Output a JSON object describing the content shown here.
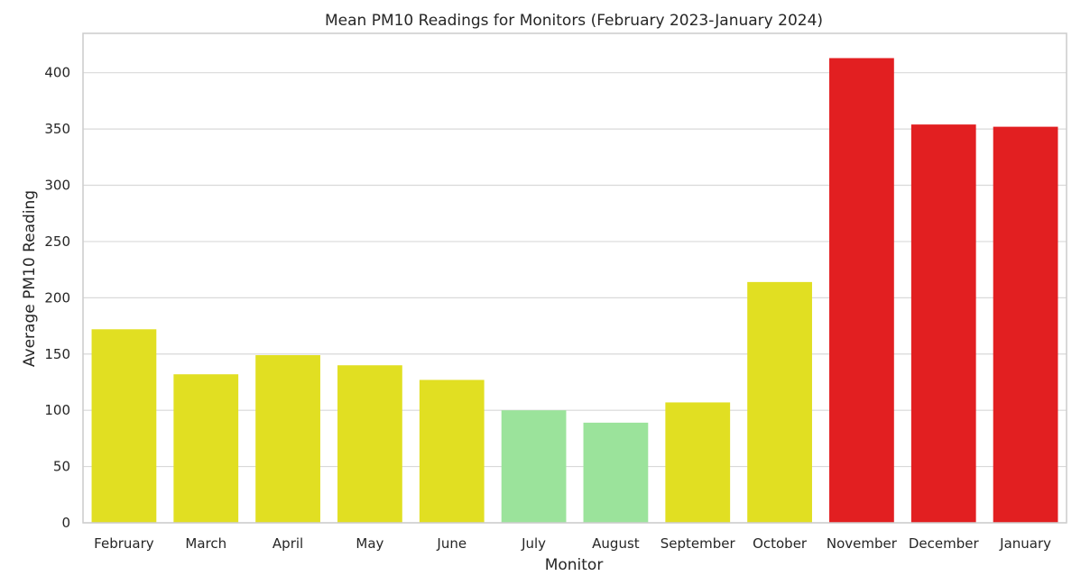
{
  "chart_data": {
    "type": "bar",
    "title": "Mean PM10 Readings for Monitors (February 2023-January 2024)",
    "xlabel": "Monitor",
    "ylabel": "Average PM10 Reading",
    "categories": [
      "February",
      "March",
      "April",
      "May",
      "June",
      "July",
      "August",
      "September",
      "October",
      "November",
      "December",
      "January"
    ],
    "values": [
      172,
      132,
      149,
      140,
      127,
      100,
      89,
      107,
      214,
      413,
      354,
      352
    ],
    "bar_colors": [
      "#e1df22",
      "#e1df22",
      "#e1df22",
      "#e1df22",
      "#e1df22",
      "#9be39b",
      "#9be39b",
      "#e1df22",
      "#e1df22",
      "#e21f21",
      "#e21f21",
      "#e21f21"
    ],
    "ylim": [
      0,
      435
    ],
    "yticks": [
      0,
      50,
      100,
      150,
      200,
      250,
      300,
      350,
      400
    ],
    "grid": true,
    "legend": "none"
  }
}
